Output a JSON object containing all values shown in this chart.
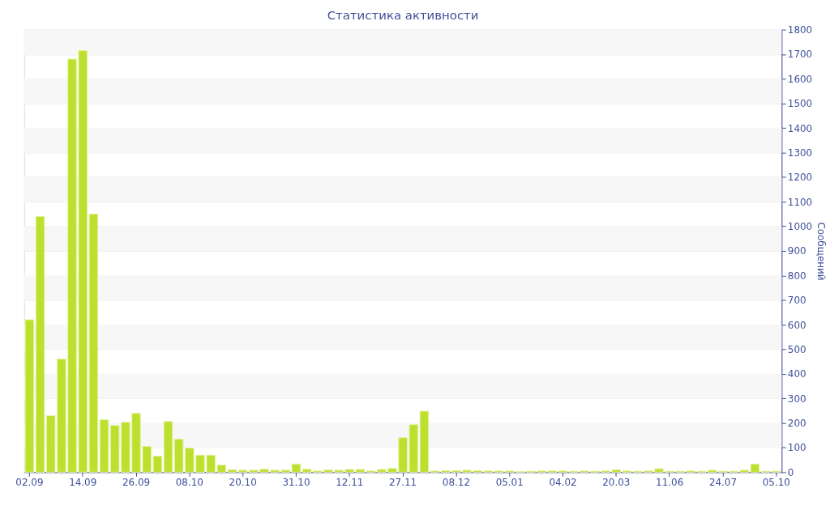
{
  "chart_data": {
    "type": "bar",
    "title": "Статистика активности",
    "y2label": "Сообщений",
    "categories": [
      "02.09",
      null,
      null,
      null,
      null,
      "14.09",
      null,
      null,
      null,
      null,
      "26.09",
      null,
      null,
      null,
      null,
      "08.10",
      null,
      null,
      null,
      null,
      "20.10",
      null,
      null,
      null,
      null,
      "31.10",
      null,
      null,
      null,
      null,
      "12.11",
      null,
      null,
      null,
      null,
      "27.11",
      null,
      null,
      null,
      null,
      "08.12",
      null,
      null,
      null,
      null,
      "05.01",
      null,
      null,
      null,
      null,
      "04.02",
      null,
      null,
      null,
      null,
      "20.03",
      null,
      null,
      null,
      null,
      "11.06",
      null,
      null,
      null,
      null,
      "24.07",
      null,
      null,
      null,
      null,
      "05.10"
    ],
    "series": [
      {
        "color": "#bde02f",
        "axis": "y2",
        "values": [
          620,
          1040,
          230,
          460,
          1680,
          1715,
          1050,
          213,
          190,
          203,
          239,
          105,
          65,
          206,
          134,
          98,
          69,
          69,
          29,
          10,
          8,
          8,
          12,
          8,
          8,
          33,
          12,
          5,
          9,
          8,
          11,
          11,
          5,
          11,
          15,
          140,
          193,
          248,
          5,
          6,
          6,
          8,
          6,
          5,
          5,
          5,
          3,
          4,
          5,
          5,
          5,
          4,
          5,
          4,
          5,
          10,
          5,
          4,
          5,
          14,
          4,
          4,
          5,
          4,
          8,
          4,
          4,
          8,
          33,
          4,
          4
        ]
      }
    ],
    "y2lim": [
      0,
      1800
    ],
    "y2ticks": [
      0,
      100,
      200,
      300,
      400,
      500,
      600,
      700,
      800,
      900,
      1000,
      1100,
      1200,
      1300,
      1400,
      1500,
      1600,
      1700,
      1800
    ],
    "grid": true
  }
}
